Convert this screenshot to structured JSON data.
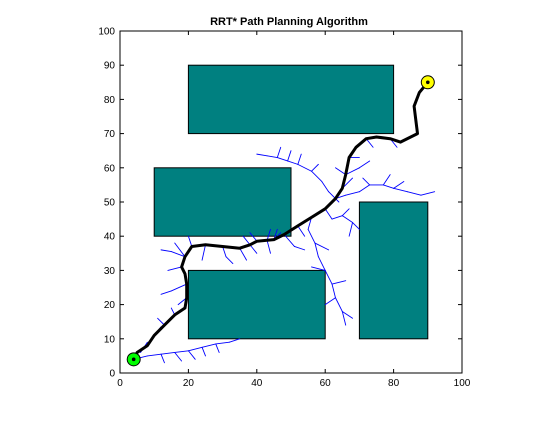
{
  "chart_data": {
    "type": "scatter",
    "title": "RRT* Path Planning Algorithm",
    "xlabel": "",
    "ylabel": "",
    "xlim": [
      0,
      100
    ],
    "ylim": [
      0,
      100
    ],
    "xticks": [
      "0",
      "20",
      "40",
      "60",
      "80",
      "100"
    ],
    "yticks": [
      "0",
      "10",
      "20",
      "30",
      "40",
      "50",
      "60",
      "70",
      "80",
      "90",
      "100"
    ],
    "grid": false,
    "colors": {
      "obstacle": "#008080",
      "tree": "#0000ff",
      "path": "#000000",
      "start": "#00ff00",
      "goal": "#ffff00"
    },
    "start": {
      "x": 4,
      "y": 4
    },
    "goal": {
      "x": 90,
      "y": 85
    },
    "obstacles": [
      {
        "x": 20,
        "y": 70,
        "width": 60,
        "height": 20
      },
      {
        "x": 10,
        "y": 40,
        "width": 40,
        "height": 20
      },
      {
        "x": 20,
        "y": 10,
        "width": 40,
        "height": 20
      },
      {
        "x": 70,
        "y": 10,
        "width": 20,
        "height": 40
      }
    ],
    "path": [
      [
        4,
        4
      ],
      [
        5,
        6
      ],
      [
        8,
        8
      ],
      [
        10,
        11
      ],
      [
        13,
        14
      ],
      [
        16,
        17
      ],
      [
        19,
        19
      ],
      [
        19.5,
        22
      ],
      [
        19.5,
        26
      ],
      [
        19,
        29
      ],
      [
        18,
        31
      ],
      [
        19,
        34
      ],
      [
        21,
        37
      ],
      [
        25,
        37.5
      ],
      [
        30,
        37
      ],
      [
        35,
        36.5
      ],
      [
        38,
        37.5
      ],
      [
        40,
        38.5
      ],
      [
        43,
        38.8
      ],
      [
        45,
        39
      ],
      [
        48,
        40.5
      ],
      [
        52,
        43
      ],
      [
        56,
        45.5
      ],
      [
        60,
        48
      ],
      [
        63,
        51
      ],
      [
        65,
        54
      ],
      [
        66,
        58
      ],
      [
        67,
        63
      ],
      [
        69,
        66
      ],
      [
        72,
        68.5
      ],
      [
        75,
        69
      ],
      [
        79,
        68.5
      ],
      [
        82,
        67.5
      ],
      [
        85,
        69
      ],
      [
        87,
        70
      ],
      [
        86.5,
        74
      ],
      [
        86,
        78
      ],
      [
        87.5,
        82
      ],
      [
        90,
        85
      ]
    ],
    "tree_edges": [
      [
        [
          4,
          4
        ],
        [
          8,
          5
        ]
      ],
      [
        [
          8,
          5
        ],
        [
          12,
          5.5
        ]
      ],
      [
        [
          12,
          5.5
        ],
        [
          16,
          6
        ]
      ],
      [
        [
          16,
          6
        ],
        [
          20,
          6.5
        ]
      ],
      [
        [
          20,
          6.5
        ],
        [
          24,
          7.5
        ]
      ],
      [
        [
          24,
          7.5
        ],
        [
          28,
          8.5
        ]
      ],
      [
        [
          28,
          8.5
        ],
        [
          32,
          9
        ]
      ],
      [
        [
          32,
          9
        ],
        [
          35,
          10
        ]
      ],
      [
        [
          16,
          6
        ],
        [
          18,
          3.5
        ]
      ],
      [
        [
          20,
          6.5
        ],
        [
          22,
          4
        ]
      ],
      [
        [
          24,
          7.5
        ],
        [
          25,
          5
        ]
      ],
      [
        [
          28,
          8.5
        ],
        [
          29,
          6
        ]
      ],
      [
        [
          12,
          5.5
        ],
        [
          13,
          3
        ]
      ],
      [
        [
          6,
          6
        ],
        [
          8,
          9
        ]
      ],
      [
        [
          10,
          11
        ],
        [
          12,
          13.5
        ]
      ],
      [
        [
          13,
          14
        ],
        [
          11,
          16
        ]
      ],
      [
        [
          16,
          17
        ],
        [
          15,
          19
        ]
      ],
      [
        [
          19.5,
          26
        ],
        [
          15,
          24
        ]
      ],
      [
        [
          15,
          24
        ],
        [
          12,
          23
        ]
      ],
      [
        [
          19.5,
          22
        ],
        [
          17,
          20
        ]
      ],
      [
        [
          18,
          31
        ],
        [
          14,
          30
        ]
      ],
      [
        [
          19,
          34
        ],
        [
          15,
          35.5
        ]
      ],
      [
        [
          15,
          35.5
        ],
        [
          12,
          36
        ]
      ],
      [
        [
          19,
          34
        ],
        [
          16,
          38
        ]
      ],
      [
        [
          21,
          37
        ],
        [
          20,
          40
        ]
      ],
      [
        [
          25,
          37.5
        ],
        [
          24,
          33
        ]
      ],
      [
        [
          30,
          37
        ],
        [
          31,
          34
        ]
      ],
      [
        [
          31,
          34
        ],
        [
          33,
          32
        ]
      ],
      [
        [
          35,
          36.5
        ],
        [
          37,
          33
        ]
      ],
      [
        [
          38,
          37.5
        ],
        [
          40,
          35
        ]
      ],
      [
        [
          43,
          38.8
        ],
        [
          44,
          35
        ]
      ],
      [
        [
          38,
          37.5
        ],
        [
          36,
          40
        ]
      ],
      [
        [
          45,
          39
        ],
        [
          47,
          41
        ]
      ],
      [
        [
          48,
          40.5
        ],
        [
          51,
          37
        ]
      ],
      [
        [
          51,
          37
        ],
        [
          54,
          36
        ]
      ],
      [
        [
          52,
          43
        ],
        [
          54,
          40
        ]
      ],
      [
        [
          56,
          45.5
        ],
        [
          55,
          42
        ]
      ],
      [
        [
          55,
          42
        ],
        [
          57,
          38
        ]
      ],
      [
        [
          57,
          38
        ],
        [
          58,
          34
        ]
      ],
      [
        [
          58,
          34
        ],
        [
          60,
          30
        ]
      ],
      [
        [
          60,
          30
        ],
        [
          62,
          26
        ]
      ],
      [
        [
          62,
          26
        ],
        [
          63,
          22
        ]
      ],
      [
        [
          63,
          22
        ],
        [
          65,
          18
        ]
      ],
      [
        [
          65,
          18
        ],
        [
          66,
          14
        ]
      ],
      [
        [
          57,
          38
        ],
        [
          61,
          36
        ]
      ],
      [
        [
          60,
          30
        ],
        [
          56,
          31
        ]
      ],
      [
        [
          62,
          26
        ],
        [
          66,
          27
        ]
      ],
      [
        [
          63,
          22
        ],
        [
          60,
          20
        ]
      ],
      [
        [
          65,
          18
        ],
        [
          68,
          16
        ]
      ],
      [
        [
          60,
          48
        ],
        [
          62,
          45
        ]
      ],
      [
        [
          62,
          45
        ],
        [
          65,
          46
        ]
      ],
      [
        [
          65,
          46
        ],
        [
          68,
          44
        ]
      ],
      [
        [
          65,
          46
        ],
        [
          67,
          48
        ]
      ],
      [
        [
          68,
          44
        ],
        [
          70,
          42
        ]
      ],
      [
        [
          68,
          44
        ],
        [
          67,
          40
        ]
      ],
      [
        [
          63,
          51
        ],
        [
          66,
          52
        ]
      ],
      [
        [
          66,
          52
        ],
        [
          70,
          53
        ]
      ],
      [
        [
          70,
          53
        ],
        [
          73,
          55
        ]
      ],
      [
        [
          73,
          55
        ],
        [
          77,
          55
        ]
      ],
      [
        [
          77,
          55
        ],
        [
          80,
          54
        ]
      ],
      [
        [
          80,
          54
        ],
        [
          84,
          53
        ]
      ],
      [
        [
          84,
          53
        ],
        [
          88,
          52
        ]
      ],
      [
        [
          88,
          52
        ],
        [
          92,
          53
        ]
      ],
      [
        [
          77,
          55
        ],
        [
          79,
          58
        ]
      ],
      [
        [
          80,
          54
        ],
        [
          83,
          56
        ]
      ],
      [
        [
          73,
          55
        ],
        [
          71,
          57
        ]
      ],
      [
        [
          64,
          50
        ],
        [
          61,
          53
        ]
      ],
      [
        [
          61,
          53
        ],
        [
          59,
          56
        ]
      ],
      [
        [
          59,
          56
        ],
        [
          56,
          59
        ]
      ],
      [
        [
          56,
          59
        ],
        [
          52,
          61
        ]
      ],
      [
        [
          52,
          61
        ],
        [
          49,
          62
        ]
      ],
      [
        [
          49,
          62
        ],
        [
          46,
          63
        ]
      ],
      [
        [
          46,
          63
        ],
        [
          43,
          63.5
        ]
      ],
      [
        [
          43,
          63.5
        ],
        [
          40,
          64
        ]
      ],
      [
        [
          49,
          62
        ],
        [
          50,
          65
        ]
      ],
      [
        [
          46,
          63
        ],
        [
          47,
          66
        ]
      ],
      [
        [
          52,
          61
        ],
        [
          53,
          64
        ]
      ],
      [
        [
          56,
          59
        ],
        [
          58,
          61
        ]
      ],
      [
        [
          65,
          54
        ],
        [
          68,
          57
        ]
      ],
      [
        [
          66,
          58
        ],
        [
          70,
          60
        ]
      ],
      [
        [
          70,
          60
        ],
        [
          73,
          62
        ]
      ],
      [
        [
          66,
          58
        ],
        [
          63,
          60
        ]
      ],
      [
        [
          67,
          63
        ],
        [
          70,
          63
        ]
      ],
      [
        [
          40,
          38.6
        ],
        [
          38,
          41
        ]
      ],
      [
        [
          43,
          38.8
        ],
        [
          44,
          42
        ]
      ],
      [
        [
          45,
          39
        ],
        [
          46,
          42
        ]
      ],
      [
        [
          72,
          68.5
        ],
        [
          74,
          66
        ]
      ],
      [
        [
          79,
          68.5
        ],
        [
          81,
          66
        ]
      ]
    ]
  }
}
